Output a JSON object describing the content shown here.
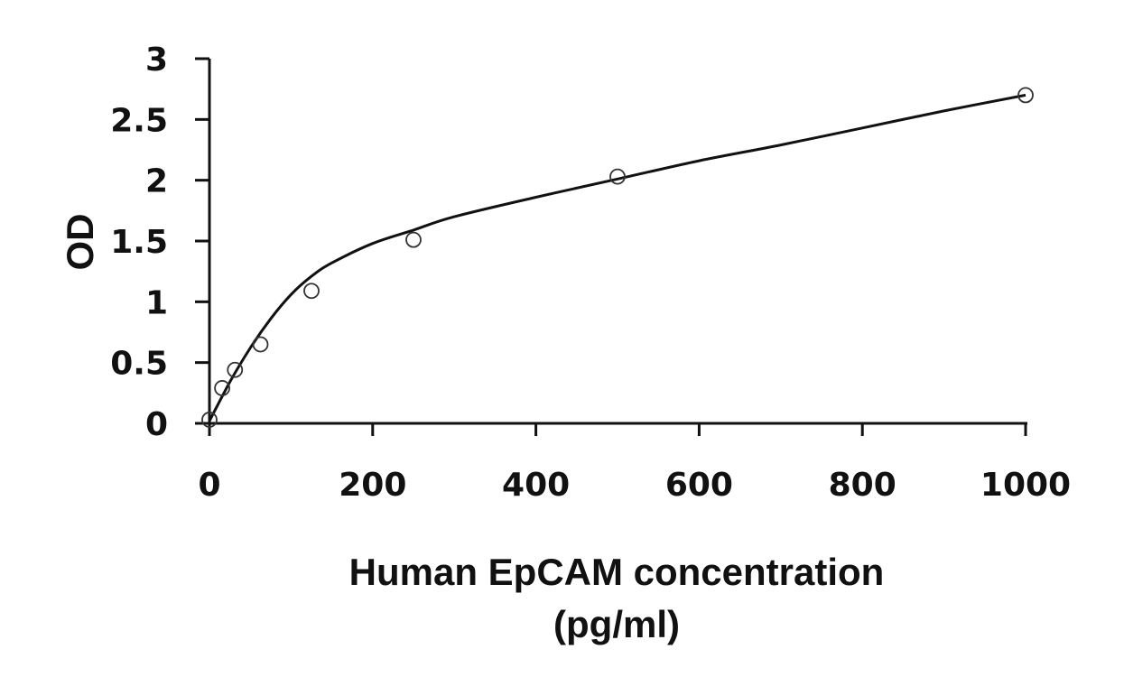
{
  "chart_data": {
    "type": "scatter",
    "title": "",
    "xlabel_line1": "Human EpCAM concentration",
    "xlabel_line2": "(pg/ml)",
    "ylabel": "OD",
    "xlim": [
      0,
      1000
    ],
    "ylim": [
      0,
      3
    ],
    "x_ticks": [
      0,
      200,
      400,
      600,
      800,
      1000
    ],
    "y_ticks": [
      0,
      0.5,
      1,
      1.5,
      2,
      2.5,
      3
    ],
    "grid": false,
    "legend": "none",
    "series": [
      {
        "style": "open-circle-markers",
        "x": [
          0,
          15.6,
          31.25,
          62.5,
          125,
          250,
          500,
          1000
        ],
        "y": [
          0.03,
          0.29,
          0.44,
          0.65,
          1.09,
          1.51,
          2.03,
          2.7
        ]
      },
      {
        "style": "fitted-curve",
        "x": [
          0,
          25,
          50,
          75,
          100,
          125,
          150,
          200,
          250,
          300,
          400,
          500,
          600,
          700,
          800,
          900,
          1000
        ],
        "y": [
          0.02,
          0.34,
          0.62,
          0.86,
          1.06,
          1.21,
          1.32,
          1.48,
          1.59,
          1.7,
          1.86,
          2.01,
          2.16,
          2.29,
          2.43,
          2.57,
          2.7
        ]
      }
    ]
  }
}
